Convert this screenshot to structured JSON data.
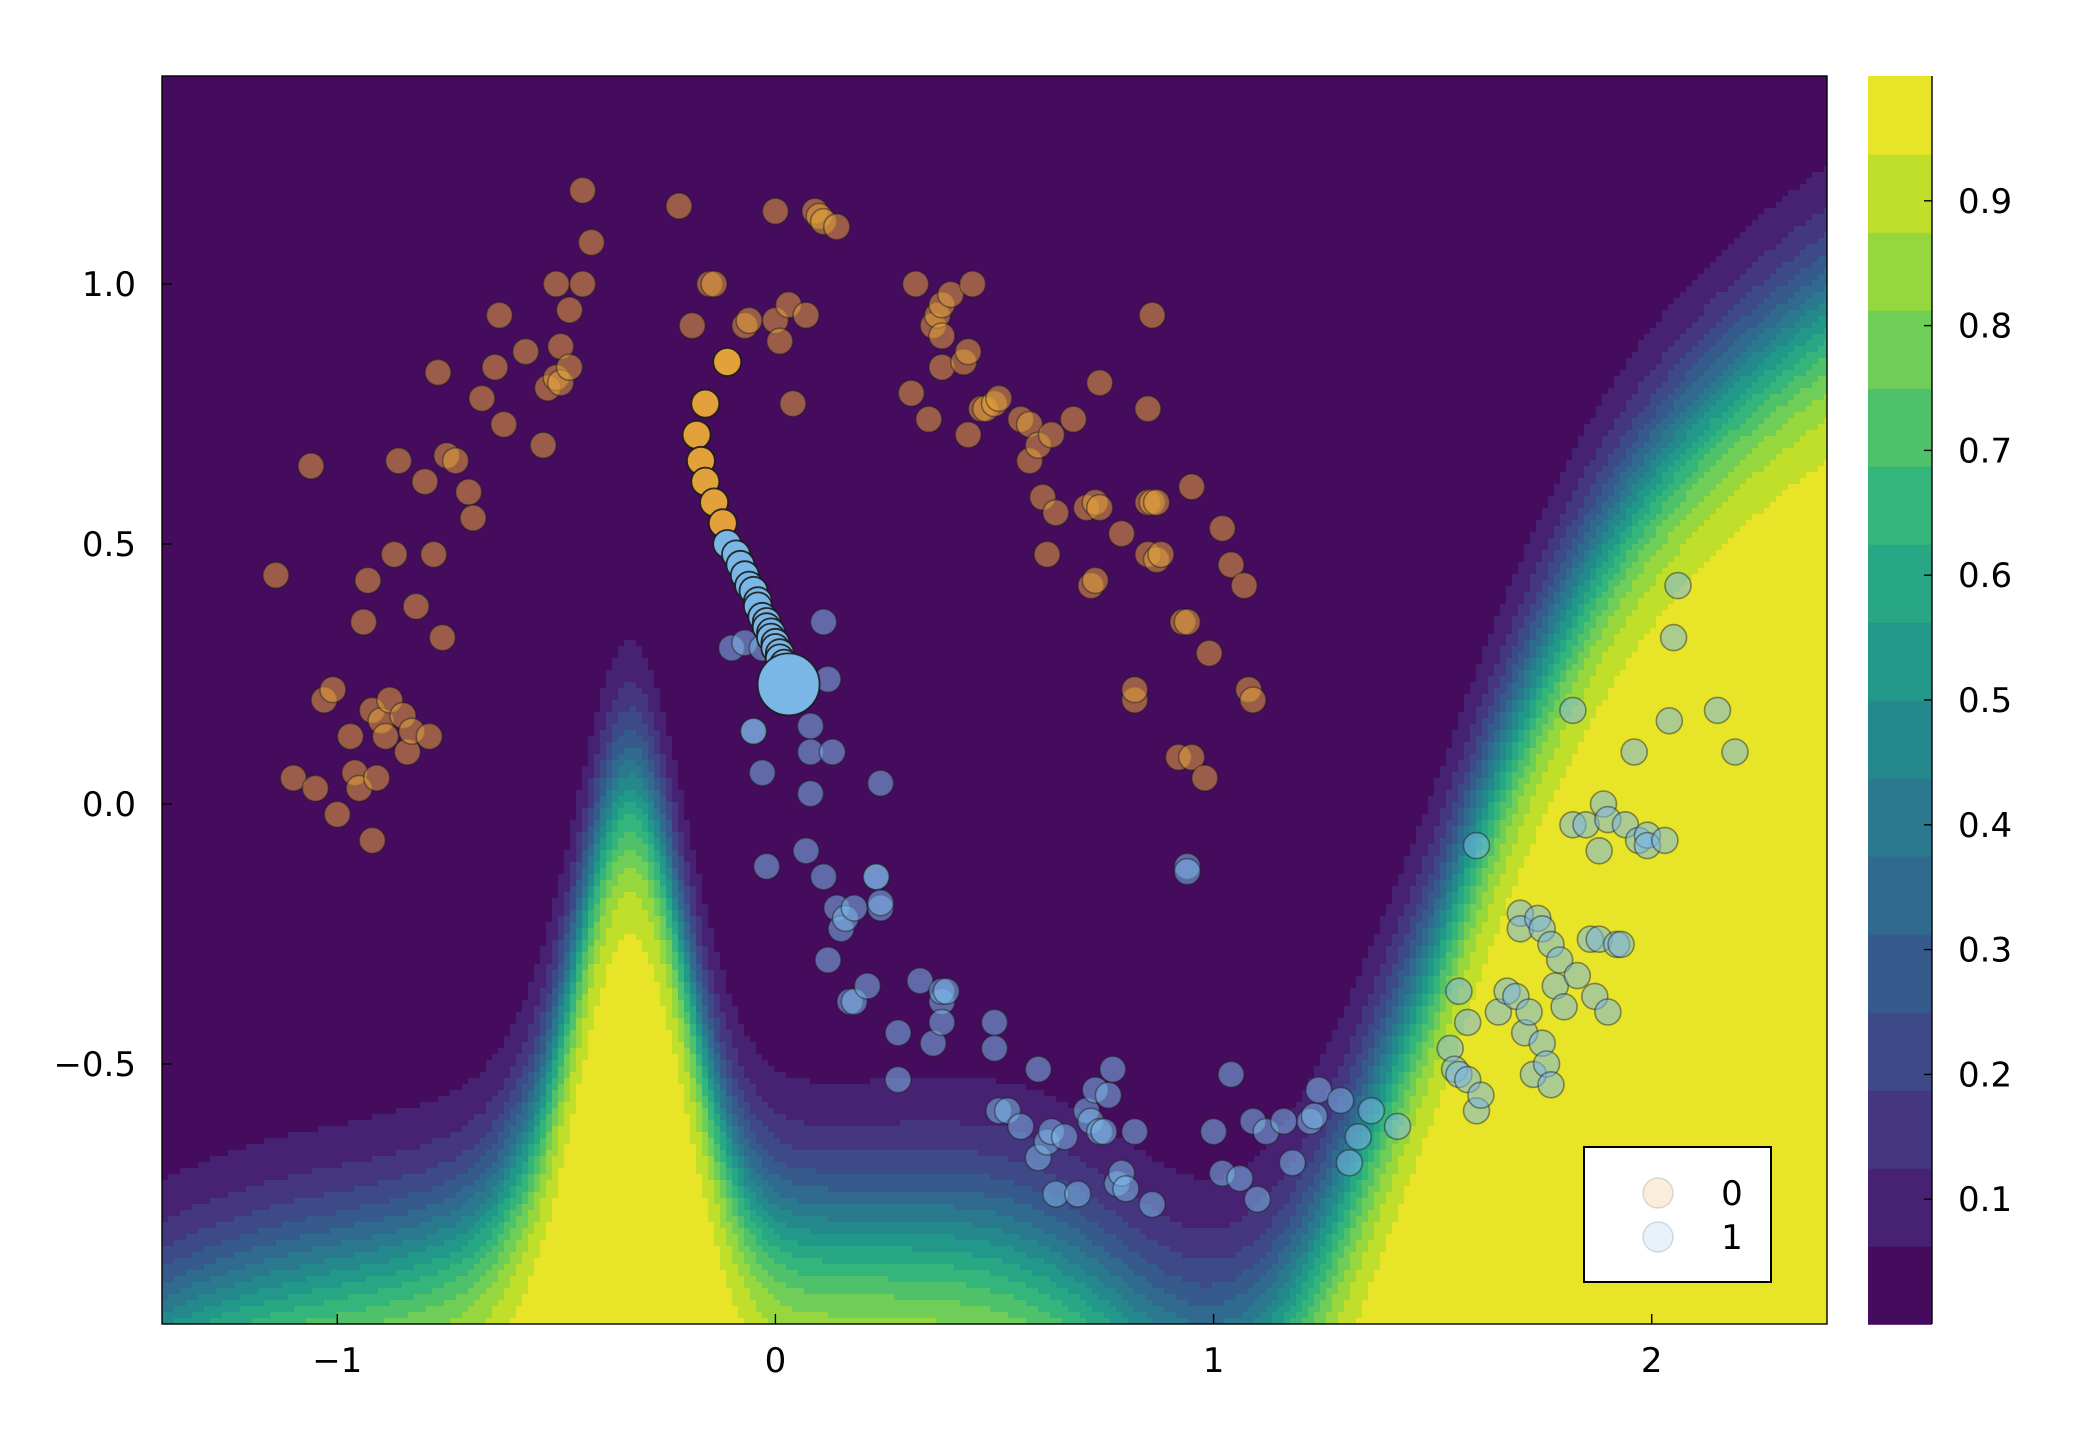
{
  "chart_data": {
    "type": "scatter",
    "title": "",
    "xlabel": "",
    "ylabel": "",
    "xlim": [
      -1.4,
      2.4
    ],
    "ylim": [
      -1.0,
      1.4
    ],
    "x_ticks": [
      -1,
      0,
      1,
      2
    ],
    "x_tick_labels": [
      "−1",
      "0",
      "1",
      "2"
    ],
    "y_ticks": [
      -0.5,
      0.0,
      0.5,
      1.0
    ],
    "y_tick_labels": [
      "−0.5",
      "0.0",
      "0.5",
      "1.0"
    ],
    "grid": false,
    "background": {
      "type": "filled-contour",
      "colormap": "viridis",
      "description_levels": [
        0,
        0.0625,
        0.125,
        0.1875,
        0.25,
        0.3125,
        0.375,
        0.4375,
        0.5,
        0.5625,
        0.625,
        0.6875,
        0.75,
        0.8125,
        0.875,
        0.9375,
        1.0
      ]
    },
    "colorbar": {
      "range": [
        0,
        1
      ],
      "ticks": [
        0.1,
        0.2,
        0.3,
        0.4,
        0.5,
        0.6,
        0.7,
        0.8,
        0.9
      ],
      "tick_labels": [
        "0.1",
        "0.2",
        "0.3",
        "0.4",
        "0.5",
        "0.6",
        "0.7",
        "0.8",
        "0.9"
      ]
    },
    "legend": {
      "placement": "bottom-right",
      "entries": [
        {
          "label": "0",
          "color": "#e2a13a"
        },
        {
          "label": "1",
          "color": "#7ab6e6"
        }
      ]
    },
    "series": [
      {
        "name": "0",
        "color": "#e2a13a",
        "points": [
          [
            -1.14,
            0.44
          ],
          [
            -1.06,
            0.65
          ],
          [
            -1.1,
            0.05
          ],
          [
            -1.05,
            0.03
          ],
          [
            -1.03,
            0.2
          ],
          [
            -1.01,
            0.22
          ],
          [
            -1.0,
            -0.02
          ],
          [
            -0.97,
            0.13
          ],
          [
            -0.96,
            0.06
          ],
          [
            -0.95,
            0.03
          ],
          [
            -0.94,
            0.35
          ],
          [
            -0.93,
            0.43
          ],
          [
            -0.92,
            0.18
          ],
          [
            -0.92,
            -0.07
          ],
          [
            -0.91,
            0.05
          ],
          [
            -0.9,
            0.16
          ],
          [
            -0.89,
            0.13
          ],
          [
            -0.88,
            0.2
          ],
          [
            -0.87,
            0.48
          ],
          [
            -0.86,
            0.66
          ],
          [
            -0.85,
            0.17
          ],
          [
            -0.84,
            0.1
          ],
          [
            -0.83,
            0.14
          ],
          [
            -0.82,
            0.38
          ],
          [
            -0.8,
            0.62
          ],
          [
            -0.79,
            0.13
          ],
          [
            -0.78,
            0.48
          ],
          [
            -0.77,
            0.83
          ],
          [
            -0.76,
            0.32
          ],
          [
            -0.75,
            0.67
          ],
          [
            -0.73,
            0.66
          ],
          [
            -0.7,
            0.6
          ],
          [
            -0.69,
            0.55
          ],
          [
            -0.67,
            0.78
          ],
          [
            -0.64,
            0.84
          ],
          [
            -0.63,
            0.94
          ],
          [
            -0.62,
            0.73
          ],
          [
            -0.57,
            0.87
          ],
          [
            -0.53,
            0.69
          ],
          [
            -0.52,
            0.8
          ],
          [
            -0.5,
            0.82
          ],
          [
            -0.5,
            1.0
          ],
          [
            -0.49,
            0.88
          ],
          [
            -0.49,
            0.81
          ],
          [
            -0.47,
            0.95
          ],
          [
            -0.47,
            0.84
          ],
          [
            -0.44,
            1.18
          ],
          [
            -0.44,
            1.0
          ],
          [
            -0.42,
            1.08
          ],
          [
            -0.22,
            1.15
          ],
          [
            -0.19,
            0.92
          ],
          [
            -0.15,
            1.0
          ],
          [
            -0.14,
            1.0
          ],
          [
            -0.07,
            0.92
          ],
          [
            -0.06,
            0.93
          ],
          [
            0.0,
            1.14
          ],
          [
            0.0,
            0.93
          ],
          [
            0.01,
            0.89
          ],
          [
            0.03,
            0.96
          ],
          [
            0.04,
            0.77
          ],
          [
            0.07,
            0.94
          ],
          [
            0.09,
            1.14
          ],
          [
            0.1,
            1.13
          ],
          [
            0.11,
            1.12
          ],
          [
            0.14,
            1.11
          ],
          [
            0.31,
            0.79
          ],
          [
            0.32,
            1.0
          ],
          [
            0.35,
            0.74
          ],
          [
            0.36,
            0.92
          ],
          [
            0.37,
            0.94
          ],
          [
            0.38,
            0.96
          ],
          [
            0.38,
            0.9
          ],
          [
            0.38,
            0.84
          ],
          [
            0.4,
            0.98
          ],
          [
            0.43,
            0.85
          ],
          [
            0.44,
            0.87
          ],
          [
            0.44,
            0.71
          ],
          [
            0.45,
            1.0
          ],
          [
            0.47,
            0.76
          ],
          [
            0.48,
            0.76
          ],
          [
            0.5,
            0.77
          ],
          [
            0.51,
            0.78
          ],
          [
            0.56,
            0.74
          ],
          [
            0.58,
            0.66
          ],
          [
            0.58,
            0.73
          ],
          [
            0.6,
            0.69
          ],
          [
            0.61,
            0.59
          ],
          [
            0.62,
            0.48
          ],
          [
            0.63,
            0.71
          ],
          [
            0.64,
            0.56
          ],
          [
            0.68,
            0.74
          ],
          [
            0.71,
            0.57
          ],
          [
            0.72,
            0.42
          ],
          [
            0.73,
            0.43
          ],
          [
            0.73,
            0.58
          ],
          [
            0.74,
            0.57
          ],
          [
            0.74,
            0.81
          ],
          [
            0.79,
            0.52
          ],
          [
            0.82,
            0.2
          ],
          [
            0.82,
            0.22
          ],
          [
            0.85,
            0.76
          ],
          [
            0.85,
            0.48
          ],
          [
            0.85,
            0.58
          ],
          [
            0.86,
            0.94
          ],
          [
            0.86,
            0.58
          ],
          [
            0.87,
            0.58
          ],
          [
            0.87,
            0.47
          ],
          [
            0.88,
            0.48
          ],
          [
            0.92,
            0.09
          ],
          [
            0.93,
            0.35
          ],
          [
            0.94,
            0.35
          ],
          [
            0.95,
            0.61
          ],
          [
            0.95,
            0.09
          ],
          [
            0.98,
            0.05
          ],
          [
            0.99,
            0.29
          ],
          [
            1.02,
            0.53
          ],
          [
            1.04,
            0.46
          ],
          [
            1.07,
            0.42
          ],
          [
            1.08,
            0.22
          ],
          [
            1.09,
            0.2
          ]
        ]
      },
      {
        "name": "1",
        "color": "#7ab6e6",
        "points": [
          [
            -0.1,
            0.3
          ],
          [
            -0.07,
            0.31
          ],
          [
            -0.05,
            0.14
          ],
          [
            -0.05,
            0.14
          ],
          [
            -0.03,
            0.06
          ],
          [
            -0.03,
            0.3
          ],
          [
            0.07,
            -0.09
          ],
          [
            -0.02,
            -0.12
          ],
          [
            0.08,
            0.15
          ],
          [
            0.08,
            0.1
          ],
          [
            0.08,
            0.02
          ],
          [
            0.11,
            -0.14
          ],
          [
            0.11,
            0.35
          ],
          [
            0.12,
            0.24
          ],
          [
            0.12,
            -0.3
          ],
          [
            0.13,
            0.1
          ],
          [
            0.14,
            -0.2
          ],
          [
            0.15,
            -0.24
          ],
          [
            0.16,
            -0.22
          ],
          [
            0.17,
            -0.38
          ],
          [
            0.18,
            -0.38
          ],
          [
            0.18,
            -0.2
          ],
          [
            0.21,
            -0.35
          ],
          [
            0.23,
            -0.14
          ],
          [
            0.23,
            -0.14
          ],
          [
            0.24,
            -0.2
          ],
          [
            0.24,
            -0.19
          ],
          [
            0.24,
            0.04
          ],
          [
            0.28,
            -0.44
          ],
          [
            0.28,
            -0.53
          ],
          [
            0.33,
            -0.34
          ],
          [
            0.36,
            -0.46
          ],
          [
            0.38,
            -0.38
          ],
          [
            0.38,
            -0.42
          ],
          [
            0.38,
            -0.36
          ],
          [
            0.39,
            -0.36
          ],
          [
            0.5,
            -0.42
          ],
          [
            0.5,
            -0.47
          ],
          [
            0.51,
            -0.59
          ],
          [
            0.53,
            -0.59
          ],
          [
            0.56,
            -0.62
          ],
          [
            0.6,
            -0.51
          ],
          [
            0.6,
            -0.68
          ],
          [
            0.62,
            -0.65
          ],
          [
            0.63,
            -0.63
          ],
          [
            0.64,
            -0.75
          ],
          [
            0.66,
            -0.64
          ],
          [
            0.69,
            -0.75
          ],
          [
            0.71,
            -0.59
          ],
          [
            0.72,
            -0.61
          ],
          [
            0.73,
            -0.55
          ],
          [
            0.74,
            -0.63
          ],
          [
            0.75,
            -0.63
          ],
          [
            0.76,
            -0.56
          ],
          [
            0.77,
            -0.51
          ],
          [
            0.78,
            -0.73
          ],
          [
            0.79,
            -0.71
          ],
          [
            0.8,
            -0.74
          ],
          [
            0.82,
            -0.63
          ],
          [
            0.86,
            -0.77
          ],
          [
            0.94,
            -0.12
          ],
          [
            0.94,
            -0.13
          ],
          [
            1.0,
            -0.63
          ],
          [
            1.02,
            -0.71
          ],
          [
            1.04,
            -0.52
          ],
          [
            1.06,
            -0.72
          ],
          [
            1.09,
            -0.61
          ],
          [
            1.1,
            -0.76
          ],
          [
            1.12,
            -0.63
          ],
          [
            1.16,
            -0.61
          ],
          [
            1.18,
            -0.69
          ],
          [
            1.22,
            -0.61
          ],
          [
            1.23,
            -0.6
          ],
          [
            1.24,
            -0.55
          ],
          [
            1.29,
            -0.57
          ],
          [
            1.31,
            -0.69
          ],
          [
            1.33,
            -0.64
          ],
          [
            1.36,
            -0.59
          ],
          [
            1.42,
            -0.62
          ],
          [
            1.54,
            -0.47
          ],
          [
            1.55,
            -0.51
          ],
          [
            1.56,
            -0.36
          ],
          [
            1.56,
            -0.52
          ],
          [
            1.58,
            -0.53
          ],
          [
            1.58,
            -0.42
          ],
          [
            1.6,
            -0.08
          ],
          [
            1.6,
            -0.59
          ],
          [
            1.61,
            -0.56
          ],
          [
            1.65,
            -0.4
          ],
          [
            1.67,
            -0.36
          ],
          [
            1.69,
            -0.37
          ],
          [
            1.7,
            -0.21
          ],
          [
            1.7,
            -0.24
          ],
          [
            1.71,
            -0.44
          ],
          [
            1.72,
            -0.4
          ],
          [
            1.73,
            -0.52
          ],
          [
            1.74,
            -0.22
          ],
          [
            1.75,
            -0.24
          ],
          [
            1.75,
            -0.46
          ],
          [
            1.76,
            -0.5
          ],
          [
            1.77,
            -0.54
          ],
          [
            1.77,
            -0.27
          ],
          [
            1.78,
            -0.35
          ],
          [
            1.79,
            -0.3
          ],
          [
            1.8,
            -0.39
          ],
          [
            1.82,
            -0.04
          ],
          [
            1.82,
            0.18
          ],
          [
            1.83,
            -0.33
          ],
          [
            1.85,
            -0.04
          ],
          [
            1.86,
            -0.26
          ],
          [
            1.87,
            -0.37
          ],
          [
            1.88,
            -0.26
          ],
          [
            1.88,
            -0.09
          ],
          [
            1.89,
            0.0
          ],
          [
            1.9,
            -0.03
          ],
          [
            1.9,
            -0.4
          ],
          [
            1.92,
            -0.27
          ],
          [
            1.93,
            -0.27
          ],
          [
            1.94,
            -0.04
          ],
          [
            1.96,
            0.1
          ],
          [
            1.97,
            -0.07
          ],
          [
            1.99,
            -0.06
          ],
          [
            1.99,
            -0.08
          ],
          [
            2.03,
            -0.07
          ],
          [
            2.04,
            0.16
          ],
          [
            2.05,
            0.32
          ],
          [
            2.06,
            0.42
          ],
          [
            2.15,
            0.18
          ],
          [
            2.19,
            0.1
          ]
        ]
      },
      {
        "name": "",
        "color": "#e2a13a",
        "role": "trajectory-class-0",
        "points": [
          [
            -0.11,
            0.85
          ],
          [
            -0.16,
            0.77
          ],
          [
            -0.18,
            0.71
          ],
          [
            -0.17,
            0.66
          ],
          [
            -0.16,
            0.62
          ],
          [
            -0.14,
            0.58
          ],
          [
            -0.12,
            0.54
          ]
        ]
      },
      {
        "name": "",
        "color": "#7ab6e6",
        "role": "trajectory-class-1",
        "points": [
          [
            -0.11,
            0.5
          ],
          [
            -0.09,
            0.48
          ],
          [
            -0.08,
            0.46
          ],
          [
            -0.07,
            0.44
          ],
          [
            -0.06,
            0.42
          ],
          [
            -0.05,
            0.41
          ],
          [
            -0.04,
            0.39
          ],
          [
            -0.04,
            0.38
          ],
          [
            -0.03,
            0.36
          ],
          [
            -0.02,
            0.35
          ],
          [
            -0.02,
            0.34
          ],
          [
            -0.01,
            0.33
          ],
          [
            -0.01,
            0.32
          ],
          [
            0.0,
            0.31
          ],
          [
            0.0,
            0.3
          ],
          [
            0.01,
            0.29
          ],
          [
            0.01,
            0.28
          ],
          [
            0.02,
            0.27
          ],
          [
            0.03,
            0.23
          ]
        ]
      }
    ]
  }
}
